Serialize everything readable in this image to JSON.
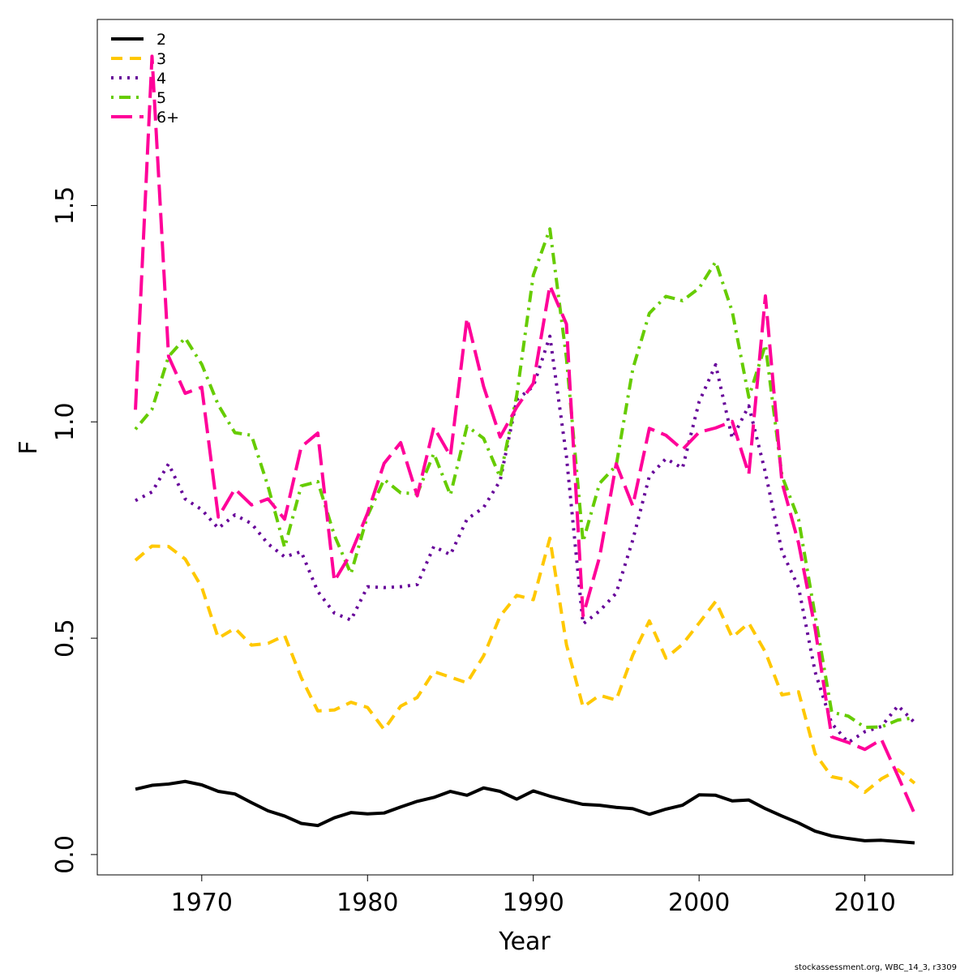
{
  "chart_data": {
    "type": "line",
    "xlabel": "Year",
    "ylabel": "F",
    "xlim": [
      1963.7,
      2015.3
    ],
    "ylim": [
      -0.047,
      1.93
    ],
    "x_ticks": [
      1970,
      1980,
      1990,
      2000,
      2010
    ],
    "y_ticks": [
      0.0,
      0.5,
      1.0,
      1.5
    ],
    "x_tick_labels": [
      "1970",
      "1980",
      "1990",
      "2000",
      "2010"
    ],
    "y_tick_labels": [
      "0.0",
      "0.5",
      "1.0",
      "1.5"
    ],
    "grid": false,
    "legend_position": "top-left",
    "x": [
      1966,
      1967,
      1968,
      1969,
      1970,
      1971,
      1972,
      1973,
      1974,
      1975,
      1976,
      1977,
      1978,
      1979,
      1980,
      1981,
      1982,
      1983,
      1984,
      1985,
      1986,
      1987,
      1988,
      1989,
      1990,
      1991,
      1992,
      1993,
      1994,
      1995,
      1996,
      1997,
      1998,
      1999,
      2000,
      2001,
      2002,
      2003,
      2004,
      2005,
      2006,
      2007,
      2008,
      2009,
      2010,
      2011,
      2012,
      2013
    ],
    "series": [
      {
        "name": "2",
        "color": "#000000",
        "dash": "solid",
        "values": [
          0.151,
          0.16,
          0.163,
          0.169,
          0.161,
          0.146,
          0.14,
          0.12,
          0.101,
          0.089,
          0.072,
          0.067,
          0.085,
          0.097,
          0.094,
          0.096,
          0.11,
          0.123,
          0.132,
          0.146,
          0.137,
          0.154,
          0.146,
          0.128,
          0.147,
          0.135,
          0.125,
          0.116,
          0.114,
          0.109,
          0.106,
          0.093,
          0.105,
          0.114,
          0.138,
          0.137,
          0.124,
          0.126,
          0.106,
          0.089,
          0.073,
          0.054,
          0.043,
          0.037,
          0.032,
          0.033,
          0.03,
          0.027
        ]
      },
      {
        "name": "3",
        "color": "#FFC800",
        "dash": "dash",
        "values": [
          0.68,
          0.713,
          0.712,
          0.683,
          0.618,
          0.5,
          0.523,
          0.484,
          0.488,
          0.506,
          0.409,
          0.332,
          0.334,
          0.352,
          0.34,
          0.289,
          0.343,
          0.363,
          0.423,
          0.41,
          0.397,
          0.459,
          0.551,
          0.599,
          0.589,
          0.731,
          0.485,
          0.341,
          0.368,
          0.357,
          0.461,
          0.54,
          0.454,
          0.486,
          0.535,
          0.585,
          0.502,
          0.535,
          0.468,
          0.369,
          0.376,
          0.233,
          0.18,
          0.172,
          0.144,
          0.175,
          0.196,
          0.165
        ]
      },
      {
        "name": "4",
        "color": "#660099",
        "dash": "dot",
        "values": [
          0.818,
          0.838,
          0.903,
          0.822,
          0.797,
          0.754,
          0.785,
          0.765,
          0.718,
          0.688,
          0.7,
          0.608,
          0.558,
          0.542,
          0.619,
          0.617,
          0.619,
          0.624,
          0.712,
          0.693,
          0.775,
          0.802,
          0.864,
          1.051,
          1.082,
          1.198,
          0.92,
          0.533,
          0.563,
          0.604,
          0.727,
          0.874,
          0.915,
          0.893,
          1.046,
          1.132,
          0.962,
          1.037,
          0.883,
          0.7,
          0.618,
          0.422,
          0.303,
          0.259,
          0.284,
          0.296,
          0.344,
          0.305
        ]
      },
      {
        "name": "5",
        "color": "#66CC00",
        "dash": "dashdot",
        "values": [
          0.983,
          1.029,
          1.151,
          1.194,
          1.133,
          1.039,
          0.975,
          0.969,
          0.851,
          0.71,
          0.852,
          0.862,
          0.738,
          0.649,
          0.783,
          0.867,
          0.836,
          0.834,
          0.927,
          0.831,
          0.99,
          0.962,
          0.872,
          1.061,
          1.339,
          1.446,
          1.147,
          0.723,
          0.858,
          0.899,
          1.122,
          1.251,
          1.29,
          1.28,
          1.309,
          1.37,
          1.255,
          1.057,
          1.178,
          0.875,
          0.775,
          0.552,
          0.329,
          0.32,
          0.294,
          0.295,
          0.311,
          0.316
        ]
      },
      {
        "name": "6+",
        "color": "#FF0099",
        "dash": "longdash",
        "values": [
          1.028,
          1.845,
          1.151,
          1.066,
          1.08,
          0.78,
          0.845,
          0.808,
          0.822,
          0.775,
          0.942,
          0.974,
          0.632,
          0.696,
          0.789,
          0.904,
          0.952,
          0.829,
          0.988,
          0.921,
          1.24,
          1.082,
          0.965,
          1.034,
          1.089,
          1.315,
          1.226,
          0.552,
          0.688,
          0.903,
          0.806,
          0.985,
          0.969,
          0.936,
          0.976,
          0.986,
          1.001,
          0.879,
          1.291,
          0.86,
          0.72,
          0.522,
          0.272,
          0.259,
          0.243,
          0.266,
          0.181,
          0.094
        ]
      }
    ]
  },
  "credit": "stockassessment.org, WBC_14_3, r3309"
}
